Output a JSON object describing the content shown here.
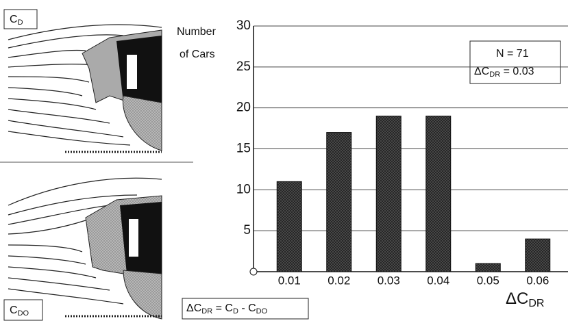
{
  "chart_data": {
    "type": "bar",
    "y_label": [
      "Number",
      "of Cars"
    ],
    "categories": [
      "0.01",
      "0.02",
      "0.03",
      "0.04",
      "0.05",
      "0.06"
    ],
    "values": [
      11,
      17,
      19,
      19,
      1,
      4
    ],
    "color": "#3a3a3a",
    "ylim": [
      0,
      30
    ],
    "yticks": [
      5,
      10,
      15,
      20,
      25,
      30
    ],
    "grid": true,
    "x_label": [
      "ΔC",
      "DR"
    ],
    "stat_box": {
      "line1": "N = 71",
      "line2": [
        "ΔC",
        "DR",
        " = 0.03"
      ]
    },
    "formula": [
      "ΔC",
      "DR",
      " = C",
      "D",
      " - C",
      "DO"
    ],
    "panel_labels": {
      "top": [
        "C",
        "D"
      ],
      "bottom": [
        "C",
        "DO"
      ]
    }
  }
}
